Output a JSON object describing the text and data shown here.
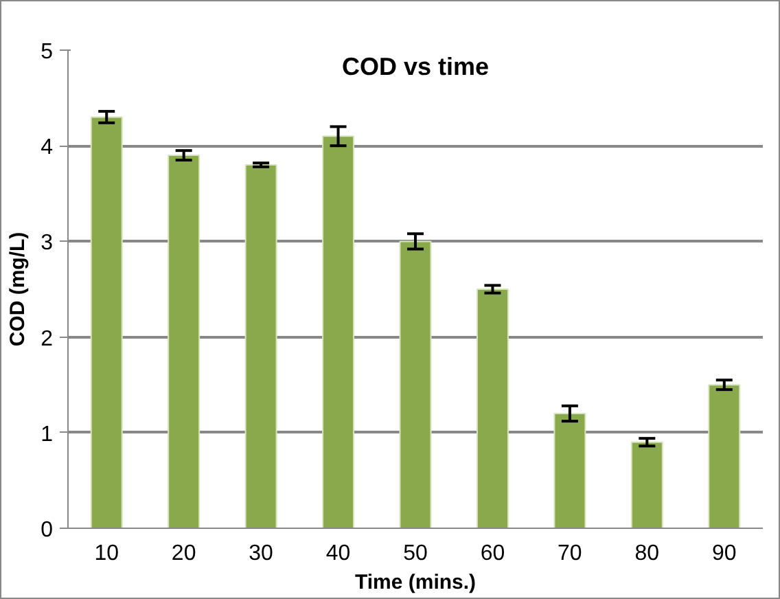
{
  "chart_data": {
    "type": "bar",
    "title": "COD vs time",
    "xlabel": "Time (mins.)",
    "ylabel": "COD (mg/L)",
    "categories": [
      "10",
      "20",
      "30",
      "40",
      "50",
      "60",
      "70",
      "80",
      "90"
    ],
    "values": [
      4.3,
      3.9,
      3.8,
      4.1,
      3.0,
      2.5,
      1.2,
      0.9,
      1.5
    ],
    "errors": [
      0.06,
      0.05,
      0.02,
      0.1,
      0.08,
      0.04,
      0.08,
      0.04,
      0.05
    ],
    "color": "#8aa84c",
    "ylim": [
      0,
      5
    ],
    "yticks": [
      0,
      1,
      2,
      3,
      4,
      5
    ],
    "grid": "y"
  }
}
